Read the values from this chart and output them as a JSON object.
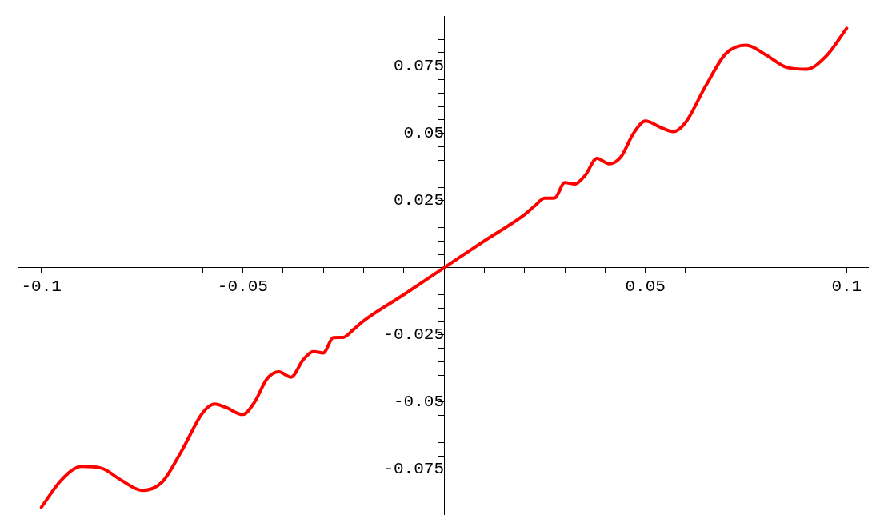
{
  "chart_data": {
    "type": "line",
    "x": [
      -0.1,
      -0.095,
      -0.09,
      -0.085,
      -0.08,
      -0.075,
      -0.07,
      -0.065,
      -0.06,
      -0.057,
      -0.054,
      -0.05,
      -0.047,
      -0.044,
      -0.041,
      -0.038,
      -0.035,
      -0.0325,
      -0.03,
      -0.0275,
      -0.025,
      -0.0225,
      -0.02,
      -0.01,
      0,
      0.01,
      0.02,
      0.0225,
      0.025,
      0.0275,
      0.03,
      0.0325,
      0.035,
      0.038,
      0.041,
      0.044,
      0.047,
      0.05,
      0.054,
      0.057,
      0.06,
      0.065,
      0.07,
      0.075,
      0.08,
      0.085,
      0.09,
      0.095,
      0.1
    ],
    "series": [
      {
        "color": "#ff0000",
        "values": [
          -0.0891,
          -0.0789,
          -0.0739,
          -0.0746,
          -0.0792,
          -0.0828,
          -0.0797,
          -0.0677,
          -0.0541,
          -0.0507,
          -0.0521,
          -0.0546,
          -0.0499,
          -0.0414,
          -0.0387,
          -0.0407,
          -0.0343,
          -0.0312,
          -0.0317,
          -0.026,
          -0.0259,
          -0.023,
          -0.0198,
          -0.01,
          0,
          0.01,
          0.0198,
          0.023,
          0.0259,
          0.026,
          0.0317,
          0.0312,
          0.0343,
          0.0407,
          0.0387,
          0.0414,
          0.0499,
          0.0546,
          0.0521,
          0.0507,
          0.0541,
          0.0677,
          0.0797,
          0.0828,
          0.0792,
          0.0746,
          0.0739,
          0.0789,
          0.0891
        ]
      }
    ],
    "xlim": [
      -0.1059,
      0.1053
    ],
    "ylim": [
      -0.0918,
      0.0935
    ],
    "xticks": [
      -0.1,
      {
        "value": -0.09,
        "label": null
      },
      {
        "value": -0.08,
        "label": null
      },
      {
        "value": -0.07,
        "label": null
      },
      {
        "value": -0.06,
        "label": null
      },
      -0.05,
      {
        "value": -0.04,
        "label": null
      },
      {
        "value": -0.03,
        "label": null
      },
      {
        "value": -0.02,
        "label": null
      },
      {
        "value": -0.01,
        "label": null
      },
      {
        "value": 0.01,
        "label": null
      },
      {
        "value": 0.02,
        "label": null
      },
      {
        "value": 0.03,
        "label": null
      },
      {
        "value": 0.04,
        "label": null
      },
      0.05,
      {
        "value": 0.06,
        "label": null
      },
      {
        "value": 0.07,
        "label": null
      },
      {
        "value": 0.08,
        "label": null
      },
      {
        "value": 0.09,
        "label": null
      },
      0.1
    ],
    "yticks": [
      -0.075,
      {
        "value": -0.07,
        "label": null
      },
      {
        "value": -0.065,
        "label": null
      },
      {
        "value": -0.06,
        "label": null
      },
      {
        "value": -0.055,
        "label": null
      },
      -0.05,
      {
        "value": -0.045,
        "label": null
      },
      {
        "value": -0.04,
        "label": null
      },
      {
        "value": -0.035,
        "label": null
      },
      {
        "value": -0.03,
        "label": null
      },
      -0.025,
      {
        "value": -0.02,
        "label": null
      },
      {
        "value": -0.015,
        "label": null
      },
      {
        "value": -0.01,
        "label": null
      },
      {
        "value": -0.005,
        "label": null
      },
      {
        "value": 0.005,
        "label": null
      },
      {
        "value": 0.01,
        "label": null
      },
      {
        "value": 0.015,
        "label": null
      },
      {
        "value": 0.02,
        "label": null
      },
      0.025,
      {
        "value": 0.03,
        "label": null
      },
      {
        "value": 0.035,
        "label": null
      },
      {
        "value": 0.04,
        "label": null
      },
      {
        "value": 0.045,
        "label": null
      },
      0.05,
      {
        "value": 0.055,
        "label": null
      },
      {
        "value": 0.06,
        "label": null
      },
      {
        "value": 0.065,
        "label": null
      },
      {
        "value": 0.07,
        "label": null
      },
      0.075,
      {
        "value": 0.08,
        "label": null
      },
      {
        "value": 0.085,
        "label": null
      },
      {
        "value": 0.09,
        "label": null
      }
    ]
  }
}
